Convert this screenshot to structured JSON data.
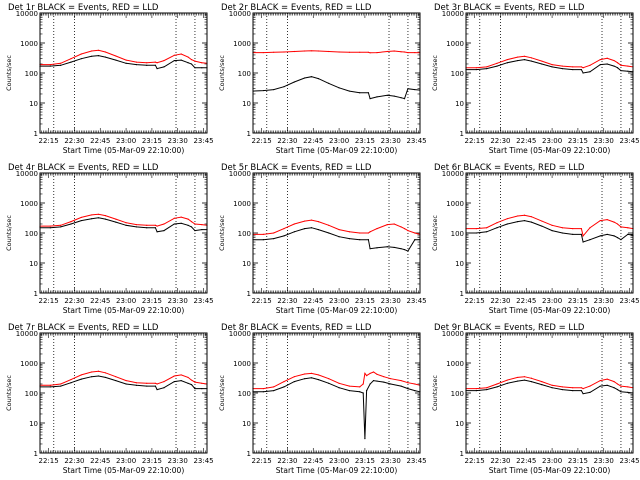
{
  "figure": {
    "xtick_labels": [
      "22:15",
      "22:30",
      "22:45",
      "23:00",
      "23:15",
      "23:30",
      "23:45"
    ],
    "ytick_labels": [
      "1",
      "10",
      "100",
      "1000",
      "10000"
    ],
    "ylabel": "Counts/sec",
    "xlabel": "Start Time (05-Mar-09 22:10:00)",
    "colors": {
      "events": "#000000",
      "lld": "#ff0000",
      "background": "#ffffff"
    }
  },
  "chart_data": [
    {
      "type": "line",
      "title": "Det 1r BLACK = Events, RED = LLD",
      "xlabel": "Start Time (05-Mar-09 22:10:00)",
      "ylabel": "Counts/sec",
      "xlim": [
        "22:10",
        "23:47"
      ],
      "ylim": [
        1,
        10000
      ],
      "yscale": "log",
      "vlines": [
        "22:18",
        "22:30",
        "23:29",
        "23:40"
      ],
      "grid": false,
      "x": [
        "22:10",
        "22:16",
        "22:22",
        "22:28",
        "22:34",
        "22:40",
        "22:44",
        "22:48",
        "22:54",
        "23:00",
        "23:06",
        "23:12",
        "23:17",
        "23:18",
        "23:22",
        "23:28",
        "23:32",
        "23:36",
        "23:38",
        "23:40",
        "23:44",
        "23:47"
      ],
      "series": [
        {
          "name": "Events",
          "color": "#000000",
          "values": [
            170,
            170,
            180,
            230,
            300,
            360,
            380,
            340,
            270,
            210,
            190,
            180,
            180,
            140,
            160,
            260,
            270,
            220,
            200,
            150,
            150,
            150
          ]
        },
        {
          "name": "LLD",
          "color": "#ff0000",
          "values": [
            190,
            190,
            210,
            300,
            430,
            540,
            570,
            500,
            370,
            270,
            230,
            220,
            230,
            220,
            260,
            390,
            430,
            340,
            280,
            250,
            220,
            210
          ]
        }
      ]
    },
    {
      "type": "line",
      "title": "Det 2r BLACK = Events, RED = LLD",
      "xlabel": "Start Time (05-Mar-09 22:10:00)",
      "ylabel": "Counts/sec",
      "xlim": [
        "22:10",
        "23:47"
      ],
      "ylim": [
        1,
        10000
      ],
      "yscale": "log",
      "vlines": [
        "22:18",
        "22:30",
        "23:29",
        "23:40"
      ],
      "grid": false,
      "x": [
        "22:10",
        "22:16",
        "22:22",
        "22:28",
        "22:34",
        "22:40",
        "22:44",
        "22:48",
        "22:54",
        "23:00",
        "23:06",
        "23:12",
        "23:17",
        "23:18",
        "23:22",
        "23:28",
        "23:32",
        "23:36",
        "23:38",
        "23:40",
        "23:44",
        "23:47"
      ],
      "series": [
        {
          "name": "Events",
          "color": "#000000",
          "values": [
            25,
            26,
            28,
            35,
            50,
            68,
            75,
            65,
            45,
            32,
            25,
            22,
            22,
            14,
            16,
            18,
            17,
            15,
            14,
            30,
            28,
            27
          ]
        },
        {
          "name": "LLD",
          "color": "#ff0000",
          "values": [
            480,
            480,
            490,
            500,
            520,
            540,
            550,
            540,
            520,
            500,
            490,
            490,
            490,
            470,
            480,
            520,
            540,
            510,
            500,
            480,
            480,
            470
          ]
        }
      ]
    },
    {
      "type": "line",
      "title": "Det 3r BLACK = Events, RED = LLD",
      "xlabel": "Start Time (05-Mar-09 22:10:00)",
      "ylabel": "Counts/sec",
      "xlim": [
        "22:10",
        "23:47"
      ],
      "ylim": [
        1,
        10000
      ],
      "yscale": "log",
      "vlines": [
        "22:18",
        "22:30",
        "23:29",
        "23:40"
      ],
      "grid": false,
      "x": [
        "22:10",
        "22:16",
        "22:22",
        "22:28",
        "22:34",
        "22:40",
        "22:44",
        "22:48",
        "22:54",
        "23:00",
        "23:06",
        "23:12",
        "23:17",
        "23:18",
        "23:22",
        "23:28",
        "23:32",
        "23:36",
        "23:38",
        "23:40",
        "23:44",
        "23:47"
      ],
      "series": [
        {
          "name": "Events",
          "color": "#000000",
          "values": [
            130,
            130,
            140,
            170,
            220,
            260,
            280,
            250,
            200,
            160,
            140,
            130,
            130,
            100,
            110,
            190,
            200,
            170,
            150,
            120,
            115,
            110
          ]
        },
        {
          "name": "LLD",
          "color": "#ff0000",
          "values": [
            150,
            150,
            160,
            210,
            280,
            340,
            360,
            320,
            250,
            190,
            170,
            160,
            160,
            150,
            180,
            280,
            310,
            260,
            220,
            180,
            170,
            160
          ]
        }
      ]
    },
    {
      "type": "line",
      "title": "Det 4r BLACK = Events, RED = LLD",
      "xlabel": "Start Time (05-Mar-09 22:10:00)",
      "ylabel": "Counts/sec",
      "xlim": [
        "22:10",
        "23:47"
      ],
      "ylim": [
        1,
        10000
      ],
      "yscale": "log",
      "vlines": [
        "22:18",
        "22:30",
        "23:29",
        "23:40"
      ],
      "grid": false,
      "x": [
        "22:10",
        "22:16",
        "22:22",
        "22:28",
        "22:34",
        "22:40",
        "22:44",
        "22:48",
        "22:54",
        "23:00",
        "23:06",
        "23:12",
        "23:17",
        "23:18",
        "23:22",
        "23:28",
        "23:32",
        "23:36",
        "23:38",
        "23:40",
        "23:44",
        "23:47"
      ],
      "series": [
        {
          "name": "Events",
          "color": "#000000",
          "values": [
            150,
            150,
            160,
            200,
            260,
            300,
            320,
            290,
            230,
            180,
            160,
            150,
            150,
            110,
            120,
            200,
            210,
            180,
            160,
            120,
            130,
            130
          ]
        },
        {
          "name": "LLD",
          "color": "#ff0000",
          "values": [
            170,
            170,
            180,
            240,
            330,
            400,
            420,
            380,
            290,
            220,
            190,
            180,
            180,
            170,
            200,
            310,
            340,
            290,
            240,
            200,
            190,
            180
          ]
        }
      ]
    },
    {
      "type": "line",
      "title": "Det 5r BLACK = Events, RED = LLD",
      "xlabel": "Start Time (05-Mar-09 22:10:00)",
      "ylabel": "Counts/sec",
      "xlim": [
        "22:10",
        "23:47"
      ],
      "ylim": [
        1,
        10000
      ],
      "yscale": "log",
      "vlines": [
        "22:18",
        "22:30",
        "23:29",
        "23:40"
      ],
      "grid": false,
      "x": [
        "22:10",
        "22:16",
        "22:22",
        "22:28",
        "22:34",
        "22:40",
        "22:44",
        "22:48",
        "22:54",
        "23:00",
        "23:06",
        "23:12",
        "23:17",
        "23:18",
        "23:22",
        "23:28",
        "23:32",
        "23:36",
        "23:38",
        "23:40",
        "23:44",
        "23:47"
      ],
      "series": [
        {
          "name": "Events",
          "color": "#000000",
          "values": [
            60,
            60,
            65,
            80,
            110,
            140,
            150,
            130,
            100,
            75,
            65,
            60,
            60,
            30,
            32,
            35,
            33,
            30,
            28,
            25,
            60,
            60
          ]
        },
        {
          "name": "LLD",
          "color": "#ff0000",
          "values": [
            90,
            90,
            100,
            140,
            200,
            250,
            270,
            240,
            180,
            130,
            110,
            100,
            100,
            110,
            140,
            190,
            200,
            160,
            140,
            120,
            100,
            90
          ]
        }
      ]
    },
    {
      "type": "line",
      "title": "Det 6r BLACK = Events, RED = LLD",
      "xlabel": "Start Time (05-Mar-09 22:10:00)",
      "ylabel": "Counts/sec",
      "xlim": [
        "22:10",
        "23:47"
      ],
      "ylim": [
        1,
        10000
      ],
      "yscale": "log",
      "vlines": [
        "22:18",
        "22:30",
        "23:29",
        "23:40"
      ],
      "grid": false,
      "x": [
        "22:10",
        "22:16",
        "22:22",
        "22:28",
        "22:34",
        "22:40",
        "22:44",
        "22:48",
        "22:54",
        "23:00",
        "23:06",
        "23:12",
        "23:17",
        "23:18",
        "23:22",
        "23:28",
        "23:32",
        "23:36",
        "23:38",
        "23:40",
        "23:44",
        "23:47"
      ],
      "series": [
        {
          "name": "Events",
          "color": "#000000",
          "values": [
            100,
            100,
            110,
            150,
            200,
            240,
            260,
            230,
            170,
            120,
            100,
            90,
            90,
            50,
            60,
            80,
            90,
            80,
            70,
            60,
            90,
            85
          ]
        },
        {
          "name": "LLD",
          "color": "#ff0000",
          "values": [
            140,
            140,
            150,
            220,
            300,
            370,
            390,
            350,
            250,
            180,
            150,
            140,
            140,
            80,
            150,
            260,
            280,
            230,
            200,
            160,
            150,
            140
          ]
        }
      ]
    },
    {
      "type": "line",
      "title": "Det 7r BLACK = Events, RED = LLD",
      "xlabel": "Start Time (05-Mar-09 22:10:00)",
      "ylabel": "Counts/sec",
      "xlim": [
        "22:10",
        "23:47"
      ],
      "ylim": [
        1,
        10000
      ],
      "yscale": "log",
      "vlines": [
        "22:18",
        "22:30",
        "23:29",
        "23:40"
      ],
      "grid": false,
      "x": [
        "22:10",
        "22:16",
        "22:22",
        "22:28",
        "22:34",
        "22:40",
        "22:44",
        "22:48",
        "22:54",
        "23:00",
        "23:06",
        "23:12",
        "23:17",
        "23:18",
        "23:22",
        "23:28",
        "23:32",
        "23:36",
        "23:38",
        "23:40",
        "23:44",
        "23:47"
      ],
      "series": [
        {
          "name": "Events",
          "color": "#000000",
          "values": [
            160,
            160,
            170,
            220,
            290,
            350,
            370,
            330,
            260,
            200,
            180,
            170,
            170,
            130,
            150,
            240,
            260,
            210,
            190,
            140,
            140,
            140
          ]
        },
        {
          "name": "LLD",
          "color": "#ff0000",
          "values": [
            180,
            180,
            200,
            280,
            400,
            500,
            530,
            470,
            350,
            260,
            220,
            210,
            210,
            200,
            240,
            370,
            400,
            330,
            270,
            230,
            210,
            200
          ]
        }
      ]
    },
    {
      "type": "line",
      "title": "Det 8r BLACK = Events, RED = LLD",
      "xlabel": "Start Time (05-Mar-09 22:10:00)",
      "ylabel": "Counts/sec",
      "xlim": [
        "22:10",
        "23:47"
      ],
      "ylim": [
        1,
        10000
      ],
      "yscale": "log",
      "vlines": [
        "22:18",
        "22:30",
        "23:29",
        "23:40"
      ],
      "grid": false,
      "x": [
        "22:10",
        "22:16",
        "22:22",
        "22:28",
        "22:34",
        "22:40",
        "22:44",
        "22:48",
        "22:54",
        "23:00",
        "23:06",
        "23:12",
        "23:14",
        "23:15",
        "23:16",
        "23:18",
        "23:20",
        "23:22",
        "23:26",
        "23:30",
        "23:36",
        "23:40",
        "23:44",
        "23:47"
      ],
      "series": [
        {
          "name": "Events",
          "color": "#000000",
          "values": [
            110,
            110,
            120,
            160,
            240,
            300,
            320,
            280,
            210,
            150,
            120,
            110,
            100,
            3,
            120,
            200,
            260,
            250,
            230,
            200,
            170,
            140,
            120,
            110
          ]
        },
        {
          "name": "LLD",
          "color": "#ff0000",
          "values": [
            140,
            140,
            160,
            240,
            350,
            430,
            450,
            400,
            300,
            210,
            170,
            160,
            200,
            450,
            380,
            450,
            500,
            420,
            350,
            300,
            260,
            220,
            200,
            180
          ]
        }
      ]
    },
    {
      "type": "line",
      "title": "Det 9r BLACK = Events, RED = LLD",
      "xlabel": "Start Time (05-Mar-09 22:10:00)",
      "ylabel": "Counts/sec",
      "xlim": [
        "22:10",
        "23:47"
      ],
      "ylim": [
        1,
        10000
      ],
      "yscale": "log",
      "vlines": [
        "22:18",
        "22:30",
        "23:29",
        "23:40"
      ],
      "grid": false,
      "x": [
        "22:10",
        "22:16",
        "22:22",
        "22:28",
        "22:34",
        "22:40",
        "22:44",
        "22:48",
        "22:54",
        "23:00",
        "23:06",
        "23:12",
        "23:17",
        "23:18",
        "23:22",
        "23:28",
        "23:32",
        "23:36",
        "23:38",
        "23:40",
        "23:44",
        "23:47"
      ],
      "series": [
        {
          "name": "Events",
          "color": "#000000",
          "values": [
            120,
            120,
            130,
            160,
            210,
            250,
            270,
            240,
            190,
            150,
            130,
            120,
            120,
            95,
            105,
            170,
            180,
            150,
            130,
            110,
            105,
            100
          ]
        },
        {
          "name": "LLD",
          "color": "#ff0000",
          "values": [
            140,
            140,
            150,
            200,
            270,
            330,
            350,
            310,
            240,
            180,
            160,
            150,
            150,
            140,
            170,
            260,
            290,
            240,
            200,
            170,
            160,
            150
          ]
        }
      ]
    }
  ]
}
